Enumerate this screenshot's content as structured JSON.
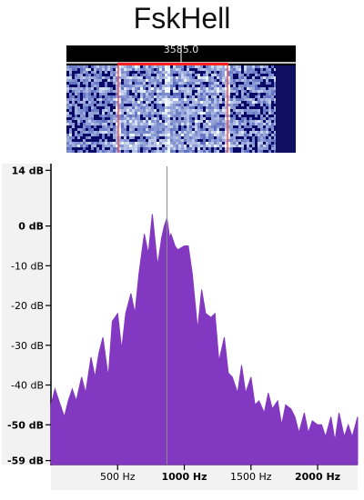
{
  "title": "FskHell",
  "waterfall": {
    "frequency_readout": "3585.0",
    "passband_color": "#ff2020",
    "background_color": "#0a0a66"
  },
  "chart_data": {
    "type": "area",
    "xlabel": "",
    "ylabel": "",
    "xlim": [
      0,
      2300
    ],
    "ylim": [
      -60,
      15
    ],
    "x_ticks": [
      {
        "value": 500,
        "label": "500 Hz",
        "bold": false
      },
      {
        "value": 1000,
        "label": "1000 Hz",
        "bold": true
      },
      {
        "value": 1500,
        "label": "1500 Hz",
        "bold": false
      },
      {
        "value": 2000,
        "label": "2000 Hz",
        "bold": true
      }
    ],
    "y_ticks": [
      {
        "value": 14,
        "label": "14 dB",
        "bold": true
      },
      {
        "value": 0,
        "label": "0 dB",
        "bold": true
      },
      {
        "value": -10,
        "label": "-10 dB",
        "bold": false
      },
      {
        "value": -20,
        "label": "-20 dB",
        "bold": false
      },
      {
        "value": -30,
        "label": "-30 dB",
        "bold": false
      },
      {
        "value": -40,
        "label": "-40 dB",
        "bold": false
      },
      {
        "value": -50,
        "label": "-50 dB",
        "bold": true
      },
      {
        "value": -59,
        "label": "-59 dB",
        "bold": true
      }
    ],
    "marker_frequency": 870,
    "fill_color": "#8338c2",
    "series": [
      {
        "x": [
          0,
          30,
          60,
          100,
          130,
          160,
          190,
          230,
          260,
          300,
          330,
          360,
          390,
          430,
          460,
          500,
          530,
          560,
          600,
          630,
          660,
          700,
          730,
          760,
          800,
          830,
          850,
          870,
          890,
          900,
          930,
          950,
          1000,
          1030,
          1060,
          1100,
          1130,
          1160,
          1200,
          1230,
          1260,
          1300,
          1330,
          1360,
          1400,
          1430,
          1460,
          1500,
          1530,
          1560,
          1600,
          1630,
          1660,
          1700,
          1730,
          1760,
          1800,
          1830,
          1860,
          1900,
          1930,
          1960,
          2000,
          2030,
          2060,
          2100,
          2130,
          2160,
          2200,
          2230,
          2260,
          2300
        ],
        "y": [
          -45,
          -41,
          -44,
          -48,
          -44,
          -41,
          -44,
          -38,
          -42,
          -33,
          -38,
          -32,
          -28,
          -38,
          -24,
          -22,
          -31,
          -22,
          -17,
          -22,
          -12,
          -2,
          -7,
          3,
          -10,
          -3,
          0,
          2,
          -3,
          -2,
          -5,
          -6,
          -5,
          -5,
          -12,
          -26,
          -16,
          -22,
          -23,
          -22,
          -34,
          -28,
          -37,
          -38,
          -42,
          -35,
          -42,
          -38,
          -45,
          -44,
          -47,
          -42,
          -46,
          -44,
          -50,
          -45,
          -46,
          -48,
          -52,
          -47,
          -52,
          -49,
          -50,
          -50,
          -53,
          -48,
          -54,
          -47,
          -53,
          -50,
          -53,
          -48
        ]
      }
    ]
  }
}
